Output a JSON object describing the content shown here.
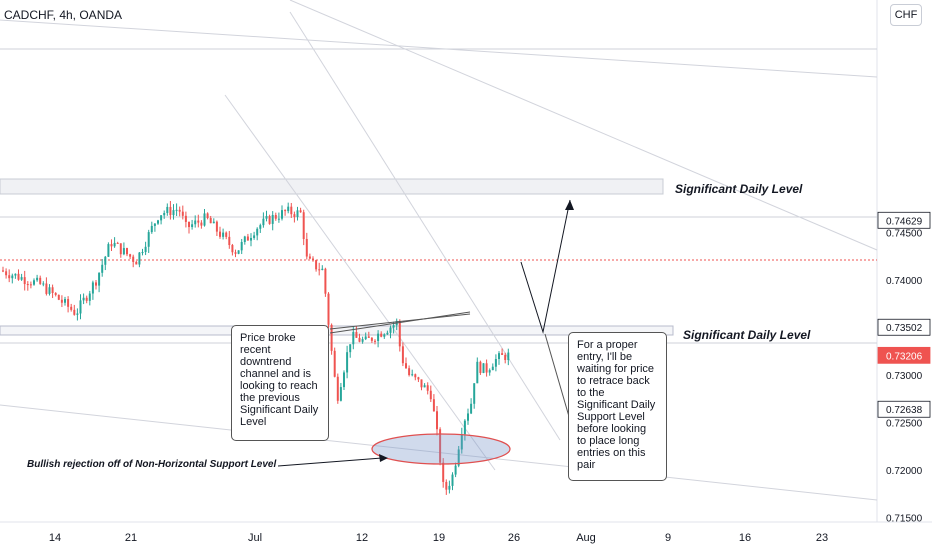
{
  "header": {
    "symbol": "CADCHF, 4h, OANDA",
    "currency": "CHF"
  },
  "chart_data": {
    "type": "candlestick",
    "symbol": "CADCHF",
    "timeframe": "4h",
    "source": "OANDA",
    "ylim": [
      0.7145,
      0.7695
    ],
    "y_ticks": [
      "0.74500",
      "0.74000",
      "0.73000",
      "0.72500",
      "0.72000",
      "0.71500"
    ],
    "x_ticks": [
      "14",
      "21",
      "Jul",
      "12",
      "19",
      "26",
      "Aug",
      "9",
      "16",
      "23"
    ],
    "price_labels": [
      {
        "text": "0.74629",
        "value": 0.74629,
        "color": "#131722",
        "bg": "#ffffff"
      },
      {
        "text": "0.73502",
        "value": 0.73502,
        "color": "#131722",
        "bg": "#ffffff"
      },
      {
        "text": "0.73206",
        "value": 0.73206,
        "color": "#ffffff",
        "bg": "#ef5350"
      },
      {
        "text": "0.72638",
        "value": 0.72638,
        "color": "#131722",
        "bg": "#ffffff"
      }
    ],
    "key_points": [
      {
        "label": "high",
        "value": 0.748
      },
      {
        "label": "breakdown_low",
        "value": 0.7275
      },
      {
        "label": "spike_low",
        "value": 0.7175
      },
      {
        "label": "current",
        "value": 0.73206
      }
    ],
    "bull_color": "#26a69a",
    "bear_color": "#ef5350"
  },
  "annotations": {
    "level_upper": "Significant Daily Level",
    "level_lower": "Significant Daily Level",
    "note_left": "Price broke recent downtrend channel and is looking to reach the previous Significant Daily Level",
    "note_right": "For a proper entry, I'll be waiting for price to retrace back to the Significant Daily Support Level before looking to place long entries on this pair",
    "bullish_rejection": "Bullish rejection off of Non-Horizontal Support Level"
  }
}
